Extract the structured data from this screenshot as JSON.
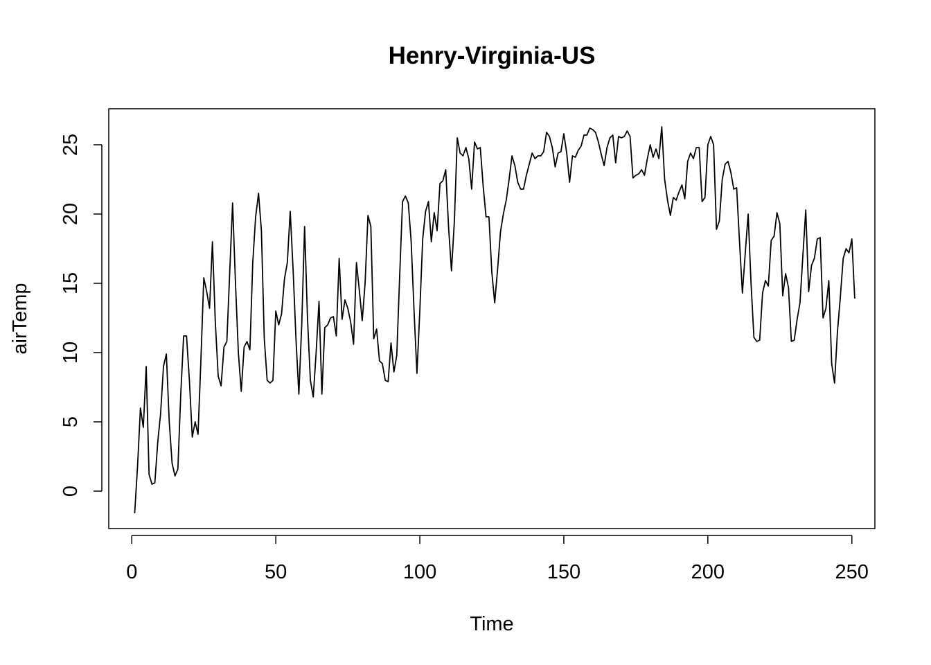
{
  "chart_data": {
    "type": "line",
    "title": "Henry-Virginia-US",
    "xlabel": "Time",
    "ylabel": "airTemp",
    "xlim": [
      -8,
      258
    ],
    "ylim": [
      -2.7,
      27.6
    ],
    "xticks": [
      0,
      50,
      100,
      150,
      200,
      250
    ],
    "yticks": [
      0,
      5,
      10,
      15,
      20,
      25
    ],
    "grid": false,
    "legend": "none",
    "line_color": "#000000",
    "series": [
      {
        "x_start": 1,
        "values": [
          -1.6,
          1.8,
          6.0,
          4.6,
          9.0,
          1.2,
          0.5,
          0.6,
          3.5,
          5.6,
          9.0,
          9.9,
          5.0,
          2.0,
          1.1,
          1.6,
          7.0,
          11.2,
          11.2,
          8.0,
          3.9,
          5.0,
          4.1,
          9.5,
          15.4,
          14.4,
          13.2,
          18.0,
          12.2,
          8.3,
          7.6,
          10.4,
          10.8,
          15.8,
          20.8,
          15.0,
          10.0,
          7.2,
          10.4,
          10.8,
          10.2,
          16.5,
          19.8,
          21.5,
          18.8,
          11.0,
          8.0,
          7.8,
          8.0,
          13.0,
          12.0,
          12.8,
          15.3,
          16.5,
          20.2,
          16.0,
          11.0,
          7.0,
          12.0,
          19.1,
          12.5,
          8.0,
          6.8,
          10.0,
          13.7,
          7.0,
          11.8,
          12.0,
          12.5,
          12.6,
          11.2,
          16.8,
          12.4,
          13.8,
          13.2,
          12.2,
          10.6,
          16.5,
          14.5,
          12.3,
          15.0,
          19.9,
          19.1,
          11.0,
          11.7,
          9.4,
          9.2,
          8.0,
          7.9,
          10.7,
          8.6,
          9.8,
          15.5,
          20.9,
          21.3,
          20.8,
          18.0,
          13.0,
          8.5,
          13.0,
          18.2,
          20.2,
          20.9,
          18.0,
          20.1,
          18.8,
          22.2,
          22.4,
          23.2,
          19.0,
          15.9,
          19.5,
          25.5,
          24.4,
          24.2,
          24.8,
          24.0,
          21.8,
          25.2,
          24.7,
          24.8,
          22.0,
          19.8,
          19.8,
          15.8,
          13.6,
          16.0,
          18.7,
          20.0,
          21.0,
          22.5,
          24.2,
          23.5,
          22.3,
          21.8,
          21.8,
          22.8,
          23.6,
          24.4,
          24.0,
          24.2,
          24.2,
          24.5,
          25.9,
          25.6,
          24.8,
          23.4,
          24.4,
          24.5,
          25.8,
          24.4,
          22.3,
          24.2,
          24.1,
          24.6,
          24.9,
          25.7,
          25.7,
          26.2,
          26.1,
          25.9,
          25.2,
          24.3,
          23.5,
          24.8,
          25.5,
          25.7,
          23.7,
          25.6,
          25.5,
          25.6,
          26.0,
          25.6,
          22.6,
          22.8,
          22.9,
          23.2,
          22.8,
          24.0,
          25.0,
          24.1,
          24.7,
          24.0,
          26.3,
          22.5,
          21.0,
          19.9,
          21.2,
          21.0,
          21.6,
          22.1,
          21.1,
          23.8,
          24.4,
          24.0,
          24.8,
          24.8,
          20.9,
          21.2,
          25.0,
          25.6,
          25.0,
          18.9,
          19.5,
          22.5,
          23.6,
          23.8,
          23.0,
          21.8,
          21.9,
          18.0,
          14.3,
          17.2,
          20.0,
          15.0,
          11.1,
          10.8,
          10.9,
          14.3,
          15.2,
          14.8,
          18.1,
          18.4,
          20.1,
          19.3,
          14.1,
          15.7,
          14.7,
          10.8,
          10.9,
          12.4,
          13.6,
          17.0,
          20.3,
          14.4,
          16.3,
          16.8,
          18.2,
          18.3,
          12.5,
          13.2,
          15.2,
          9.2,
          7.8,
          11.5,
          14.0,
          16.8,
          17.5,
          17.2,
          18.2,
          13.9
        ]
      }
    ]
  }
}
